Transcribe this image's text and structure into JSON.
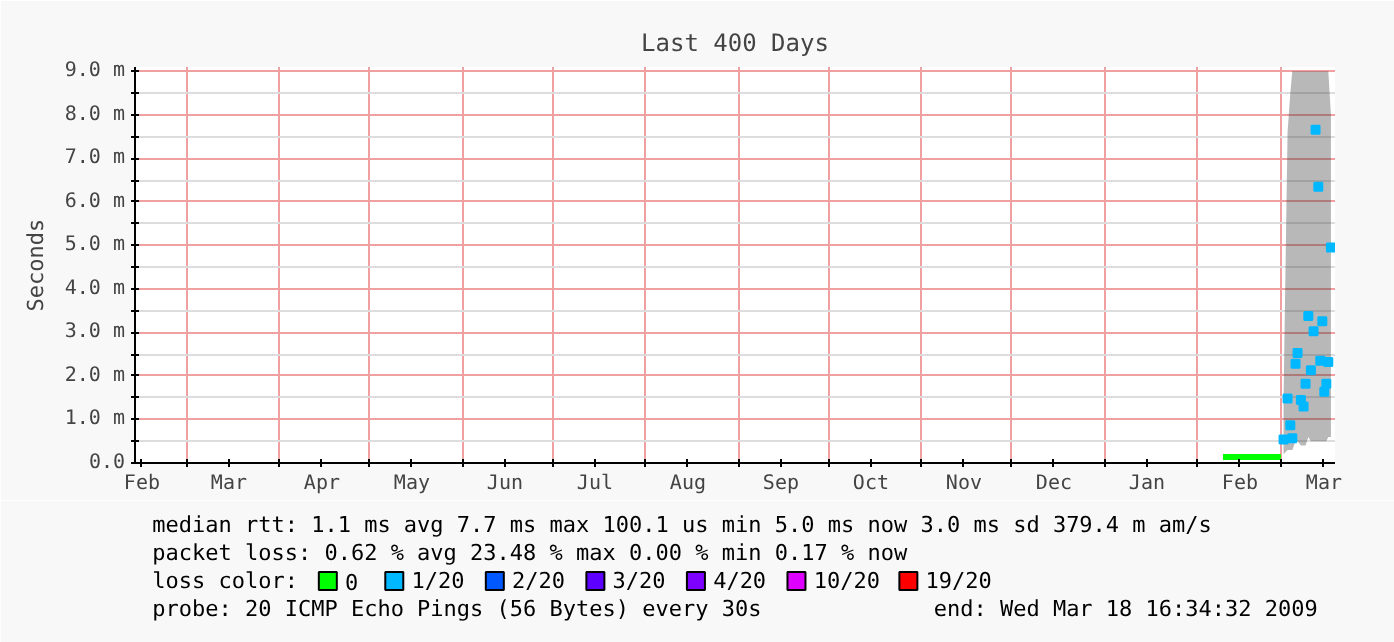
{
  "chart_data": {
    "type": "line",
    "title": "Last 400 Days",
    "ylabel": "Seconds",
    "legend_title": "loss color:",
    "annotations": [
      "median rtt: 1.1 ms avg 7.7 ms max 100.1 us min 5.0 ms now 3.0 ms sd 379.4 m am/s",
      "packet loss: 0.62 % avg 23.48 % max 0.00 % min 0.17 % now",
      "probe: 20 ICMP Echo Pings (56 Bytes) every 30s",
      "end: Wed Mar 18 16:34:32 2009"
    ],
    "xlim": [
      "2008-02-12T16:34",
      "2009-03-18T16:34"
    ],
    "xticks": [
      {
        "value": "2008-02-15",
        "label": "Feb"
      },
      {
        "value": "2008-03-01",
        "label": null
      },
      {
        "value": "2008-03-15",
        "label": "Mar"
      },
      {
        "value": "2008-04-01",
        "label": null
      },
      {
        "value": "2008-04-15",
        "label": "Apr"
      },
      {
        "value": "2008-05-01",
        "label": null
      },
      {
        "value": "2008-05-15",
        "label": "May"
      },
      {
        "value": "2008-06-01",
        "label": null
      },
      {
        "value": "2008-06-15",
        "label": "Jun"
      },
      {
        "value": "2008-07-01",
        "label": null
      },
      {
        "value": "2008-07-15",
        "label": "Jul"
      },
      {
        "value": "2008-08-01",
        "label": null
      },
      {
        "value": "2008-08-15",
        "label": "Aug"
      },
      {
        "value": "2008-09-01",
        "label": null
      },
      {
        "value": "2008-09-15",
        "label": "Sep"
      },
      {
        "value": "2008-10-01",
        "label": null
      },
      {
        "value": "2008-10-15",
        "label": "Oct"
      },
      {
        "value": "2008-11-01",
        "label": null
      },
      {
        "value": "2008-11-15",
        "label": "Nov"
      },
      {
        "value": "2008-12-01",
        "label": null
      },
      {
        "value": "2008-12-15",
        "label": "Dec"
      },
      {
        "value": "2009-01-01",
        "label": null
      },
      {
        "value": "2009-01-15",
        "label": "Jan"
      },
      {
        "value": "2009-02-01",
        "label": null
      },
      {
        "value": "2009-02-15",
        "label": "Feb"
      },
      {
        "value": "2009-03-01",
        "label": null
      },
      {
        "value": "2009-03-15",
        "label": "Mar"
      }
    ],
    "ylim": [
      0,
      9.1
    ],
    "yticks": [
      {
        "value": 0,
        "label": "0.0"
      },
      {
        "value": 0.5,
        "label": null
      },
      {
        "value": 1,
        "label": "1.0 m"
      },
      {
        "value": 1.5,
        "label": null
      },
      {
        "value": 2,
        "label": "2.0 m"
      },
      {
        "value": 2.5,
        "label": null
      },
      {
        "value": 3,
        "label": "3.0 m"
      },
      {
        "value": 3.5,
        "label": null
      },
      {
        "value": 4,
        "label": "4.0 m"
      },
      {
        "value": 4.5,
        "label": null
      },
      {
        "value": 5,
        "label": "5.0 m"
      },
      {
        "value": 5.5,
        "label": null
      },
      {
        "value": 6,
        "label": "6.0 m"
      },
      {
        "value": 6.5,
        "label": null
      },
      {
        "value": 7,
        "label": "7.0 m"
      },
      {
        "value": 7.5,
        "label": null
      },
      {
        "value": 8,
        "label": "8.0 m"
      },
      {
        "value": 8.5,
        "label": null
      },
      {
        "value": 9,
        "label": "9.0 m"
      }
    ],
    "grid": true,
    "legend": "bottom",
    "series": [
      {
        "name": "0",
        "color": "#00ff00",
        "x": [
          "2009-02-09T08:00",
          "2009-02-28T16:00"
        ],
        "values": [
          0.14,
          0.14
        ]
      },
      {
        "name": "1/20",
        "color": "#00b8ff",
        "type": "scatter",
        "marker": "square",
        "x": [
          "2009-03-01T13:00",
          "2009-03-02T21:00",
          "2009-03-03T19:00",
          "2009-03-04T11:00",
          "2009-03-05T13:00",
          "2009-03-06T05:00",
          "2009-03-07T08:00",
          "2009-03-08T05:00",
          "2009-03-08T21:00",
          "2009-03-09T19:00",
          "2009-03-10T16:00",
          "2009-03-11T13:00",
          "2009-03-12T05:00",
          "2009-03-13T03:00",
          "2009-03-13T19:00",
          "2009-03-14T11:00",
          "2009-03-15T03:00",
          "2009-03-15T19:00",
          "2009-03-16T11:00",
          "2009-03-17T08:00"
        ],
        "values": [
          0.54,
          1.48,
          0.87,
          0.57,
          2.28,
          2.53,
          1.45,
          1.3,
          1.82,
          3.38,
          2.13,
          3.03,
          7.66,
          6.35,
          2.35,
          3.26,
          1.64,
          1.82,
          2.32,
          4.95
        ],
        "lower": [
          0.2,
          0.3,
          0.3,
          0.3,
          0.5,
          0.5,
          0.4,
          0.4,
          0.4,
          0.6,
          0.5,
          0.5,
          0.5,
          0.5,
          0.5,
          0.5,
          0.5,
          0.5,
          0.6,
          0.6
        ],
        "upper": [
          1.5,
          7.6,
          8.5,
          9.0,
          9.0,
          9.0,
          9.0,
          9.0,
          9.0,
          9.0,
          9.0,
          9.0,
          9.0,
          9.0,
          9.0,
          9.0,
          9.0,
          9.0,
          9.0,
          8.0
        ]
      },
      {
        "name": "2/20",
        "color": "#0059ff"
      },
      {
        "name": "3/20",
        "color": "#5e00ff"
      },
      {
        "name": "4/20",
        "color": "#7e00ff"
      },
      {
        "name": "10/20",
        "color": "#dd00ff"
      },
      {
        "name": "19/20",
        "color": "#ff0000"
      }
    ]
  }
}
